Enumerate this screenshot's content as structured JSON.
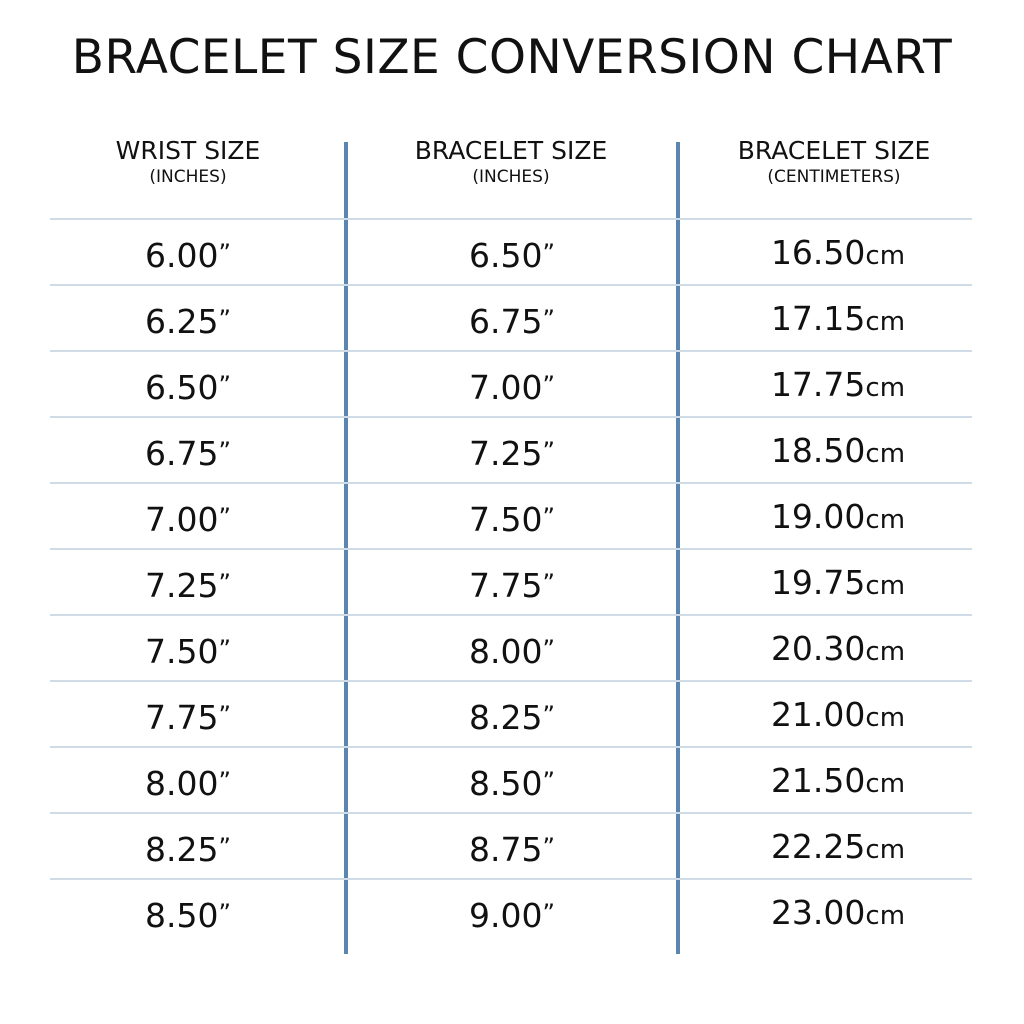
{
  "title": "BRACELET SIZE CONVERSION CHART",
  "colors": {
    "divider": "#5b86b0",
    "row_line": "#cfdce7"
  },
  "columns": [
    {
      "label": "WRIST SIZE",
      "unit": "(INCHES)"
    },
    {
      "label": "BRACELET SIZE",
      "unit": "(INCHES)"
    },
    {
      "label": "BRACELET SIZE",
      "unit": "(CENTIMETERS)"
    }
  ],
  "inch_suffix": "”",
  "cm_suffix": "cm",
  "rows": [
    [
      "6.00",
      "6.50",
      "16.50"
    ],
    [
      "6.25",
      "6.75",
      "17.15"
    ],
    [
      "6.50",
      "7.00",
      "17.75"
    ],
    [
      "6.75",
      "7.25",
      "18.50"
    ],
    [
      "7.00",
      "7.50",
      "19.00"
    ],
    [
      "7.25",
      "7.75",
      "19.75"
    ],
    [
      "7.50",
      "8.00",
      "20.30"
    ],
    [
      "7.75",
      "8.25",
      "21.00"
    ],
    [
      "8.00",
      "8.50",
      "21.50"
    ],
    [
      "8.25",
      "8.75",
      "22.25"
    ],
    [
      "8.50",
      "9.00",
      "23.00"
    ]
  ]
}
